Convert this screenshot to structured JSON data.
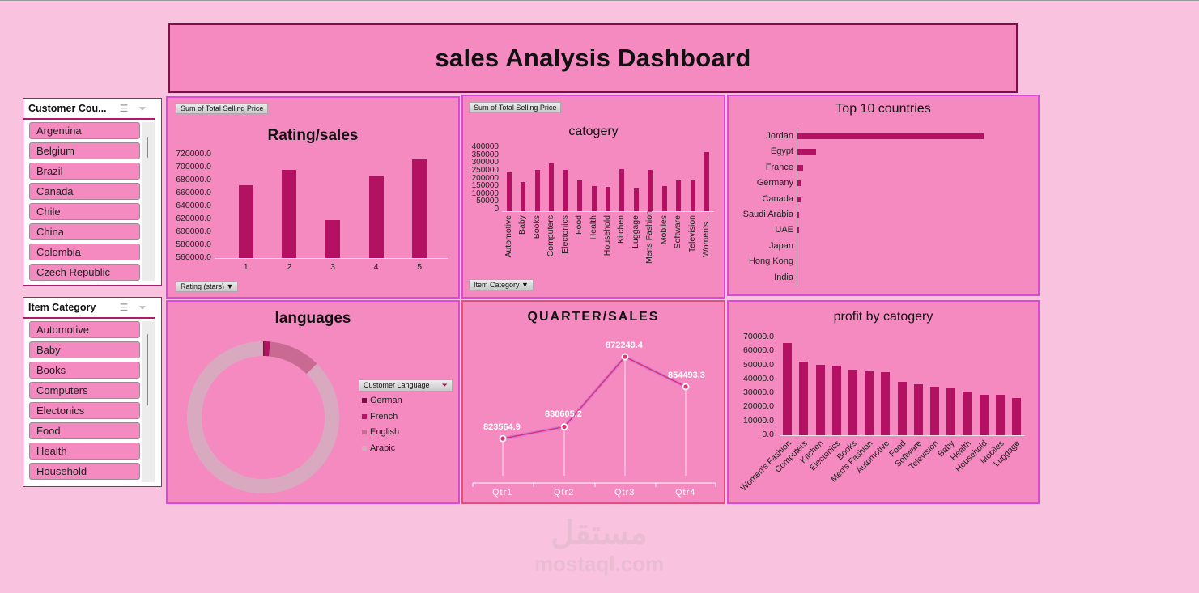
{
  "header": {
    "title": "sales Analysis Dashboard"
  },
  "slicers": [
    {
      "title": "Customer Cou...",
      "items": [
        "Argentina",
        "Belgium",
        "Brazil",
        "Canada",
        "Chile",
        "China",
        "Colombia",
        "Czech Republic"
      ],
      "icons": [
        "multi-select-icon",
        "clear-filter-icon"
      ]
    },
    {
      "title": "Item Category",
      "items": [
        "Automotive",
        "Baby",
        "Books",
        "Computers",
        "Electonics",
        "Food",
        "Health",
        "Household"
      ],
      "icons": [
        "multi-select-icon",
        "clear-filter-icon"
      ]
    }
  ],
  "panels": {
    "rating": {
      "field_button": "Sum of Total Selling Price",
      "axis_button": "Rating (stars)"
    },
    "category": {
      "field_button": "Sum of Total Selling Price",
      "axis_button": "Item Category"
    },
    "languages": {
      "legend_button": "Customer Language"
    }
  },
  "colors": {
    "background": "#f9c3df",
    "panel": "#f48ac0",
    "panel_border": "#d94ad6",
    "bar": "#b31262",
    "title_border": "#7d0f47"
  },
  "watermark": {
    "arabic": "مستقل",
    "latin": "mostaql.com"
  },
  "chart_data": [
    {
      "id": "rating",
      "type": "bar",
      "title": "Rating/sales",
      "xlabel": "Rating (stars)",
      "ylabel": "Sum of Total Selling Price",
      "categories": [
        "1",
        "2",
        "3",
        "4",
        "5"
      ],
      "values": [
        673000,
        696000,
        619000,
        687000,
        712000
      ],
      "yticks": [
        "720000.0",
        "700000.0",
        "680000.0",
        "660000.0",
        "640000.0",
        "620000.0",
        "600000.0",
        "580000.0",
        "560000.0"
      ],
      "ylim": [
        560000,
        720000
      ],
      "grid": false
    },
    {
      "id": "category",
      "type": "bar",
      "title": "catogery",
      "xlabel": "Item Category",
      "ylabel": "Sum of Total Selling Price",
      "categories": [
        "Automotive",
        "Baby",
        "Books",
        "Computers",
        "Electonics",
        "Food",
        "Health",
        "Household",
        "Kitchen",
        "Luggage",
        "Mens Fashion",
        "Mobiles",
        "Software",
        "Television",
        "Women's..."
      ],
      "values": [
        250000,
        185000,
        265000,
        308000,
        265000,
        200000,
        160000,
        155000,
        270000,
        145000,
        265000,
        160000,
        195000,
        200000,
        380000
      ],
      "yticks": [
        "400000",
        "350000",
        "300000",
        "250000",
        "200000",
        "150000",
        "100000",
        "50000",
        "0"
      ],
      "ylim": [
        0,
        400000
      ],
      "grid": false
    },
    {
      "id": "top10",
      "type": "bar",
      "orientation": "horizontal",
      "title": "Top 10 countries",
      "categories": [
        "Jordan",
        "Egypt",
        "France",
        "Germany",
        "Canada",
        "Saudi Arabia",
        "UAE",
        "Japan",
        "Hong Kong",
        "India"
      ],
      "values": [
        100,
        10,
        3,
        2.2,
        1.8,
        1,
        0.9,
        0.2,
        0.1,
        0.1
      ],
      "note": "relative bar lengths, no value axis shown",
      "grid": false
    },
    {
      "id": "languages",
      "type": "pie",
      "variant": "doughnut",
      "title": "languages",
      "legend_title": "Customer Language",
      "categories": [
        "German",
        "French",
        "English",
        "Arabic"
      ],
      "values": [
        0.3,
        1.2,
        11,
        87.5
      ],
      "colors": [
        "#7a0f45",
        "#b31262",
        "#c86a92",
        "#d9aabf"
      ],
      "legend_position": "right"
    },
    {
      "id": "quarter",
      "type": "line",
      "title": "QUARTER/SALES",
      "categories": [
        "Qtr1",
        "Qtr2",
        "Qtr3",
        "Qtr4"
      ],
      "values": [
        823564.9,
        830605.2,
        872249.4,
        854493.3
      ],
      "data_labels": [
        "823564.9",
        "830605.2",
        "872249.4",
        "854493.3"
      ],
      "grid": false
    },
    {
      "id": "profit",
      "type": "bar",
      "title": "profit by catogery",
      "categories": [
        "Women's Fashion",
        "Computers",
        "Kitchen",
        "Electonics",
        "Books",
        "Men's Fashion",
        "Automotive",
        "Food",
        "Software",
        "Television",
        "Baby",
        "Health",
        "Household",
        "Mobiles",
        "Luggage"
      ],
      "values": [
        66000,
        52500,
        50300,
        49700,
        46800,
        45600,
        45000,
        38000,
        36200,
        34500,
        33300,
        31000,
        28700,
        28700,
        26400
      ],
      "yticks": [
        "70000.0",
        "60000.0",
        "50000.0",
        "40000.0",
        "30000.0",
        "20000.0",
        "10000.0",
        "0.0"
      ],
      "ylim": [
        0,
        70000
      ],
      "grid": false
    }
  ]
}
